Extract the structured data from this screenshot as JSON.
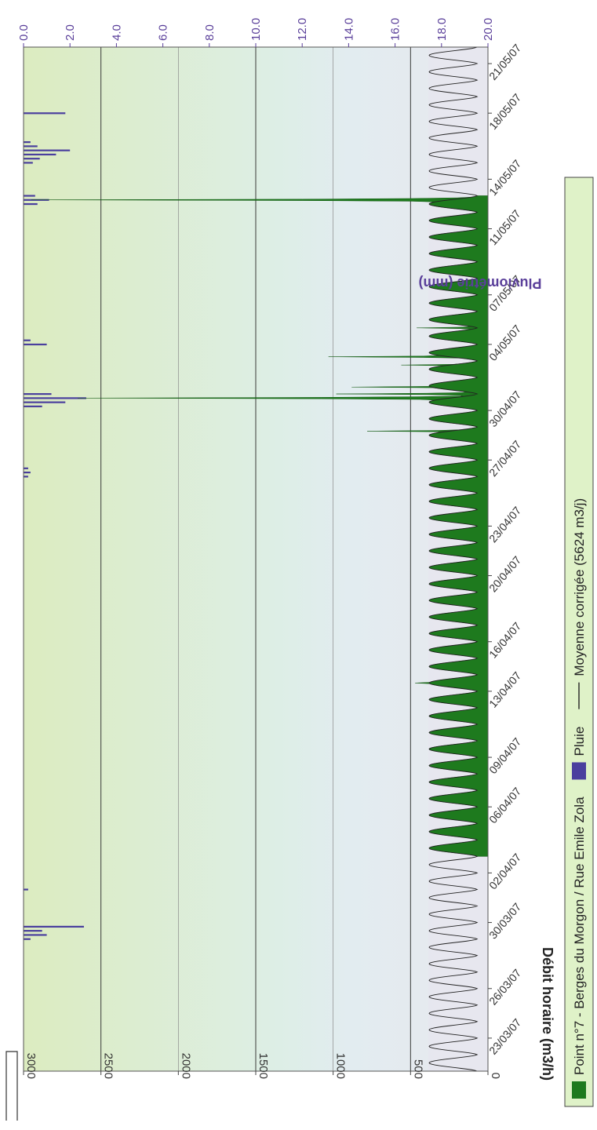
{
  "chart_data": {
    "type": "area",
    "ylabel": "Débit horaire (m3/h)",
    "y2label": "Pluviométrie (mm)",
    "ylim": [
      0,
      3000
    ],
    "y2lim": [
      0,
      20
    ],
    "y_ticks": [
      "0",
      "500",
      "1000",
      "1500",
      "2000",
      "2500",
      "3000"
    ],
    "y2_ticks": [
      "0.0",
      "2.0",
      "4.0",
      "6.0",
      "8.0",
      "10.0",
      "12.0",
      "14.0",
      "16.0",
      "18.0",
      "20.0"
    ],
    "x_start": "2007-03-21",
    "x_end": "2007-05-22",
    "x_tick_labels": [
      "23/03/07",
      "26/03/07",
      "30/03/07",
      "02/04/07",
      "06/04/07",
      "09/04/07",
      "13/04/07",
      "16/04/07",
      "20/04/07",
      "23/04/07",
      "27/04/07",
      "30/04/07",
      "04/05/07",
      "07/05/07",
      "11/05/07",
      "14/05/07",
      "18/05/07",
      "21/05/07"
    ],
    "flow_measured_period": [
      "2007-04-03",
      "2007-05-13"
    ],
    "flow_daily_pattern": {
      "min": 70,
      "max": 380
    },
    "flow_peaks": [
      {
        "date": "2007-04-13 12:00",
        "value": 470
      },
      {
        "date": "2007-04-28 18:00",
        "value": 780
      },
      {
        "date": "2007-04-30 18:00",
        "value": 2650
      },
      {
        "date": "2007-05-01 00:00",
        "value": 980
      },
      {
        "date": "2007-05-01 10:00",
        "value": 880
      },
      {
        "date": "2007-05-03 06:00",
        "value": 1030
      },
      {
        "date": "2007-05-02 18:00",
        "value": 560
      },
      {
        "date": "2007-05-05 00:00",
        "value": 460
      },
      {
        "date": "2007-05-12 18:00",
        "value": 2950
      }
    ],
    "rain": [
      {
        "date": "2007-03-29 00:00",
        "mm": 0.3
      },
      {
        "date": "2007-03-29 06:00",
        "mm": 1.0
      },
      {
        "date": "2007-03-29 12:00",
        "mm": 0.8
      },
      {
        "date": "2007-03-29 18:00",
        "mm": 2.6
      },
      {
        "date": "2007-04-01 00:00",
        "mm": 0.2
      },
      {
        "date": "2007-04-26 00:00",
        "mm": 0.2
      },
      {
        "date": "2007-04-26 06:00",
        "mm": 0.3
      },
      {
        "date": "2007-04-26 12:00",
        "mm": 0.2
      },
      {
        "date": "2007-04-30 06:00",
        "mm": 0.8
      },
      {
        "date": "2007-04-30 12:00",
        "mm": 1.8
      },
      {
        "date": "2007-04-30 18:00",
        "mm": 2.7
      },
      {
        "date": "2007-05-01 00:00",
        "mm": 1.2
      },
      {
        "date": "2007-05-04 00:00",
        "mm": 1.0
      },
      {
        "date": "2007-05-04 06:00",
        "mm": 0.3
      },
      {
        "date": "2007-05-12 12:00",
        "mm": 0.6
      },
      {
        "date": "2007-05-12 18:00",
        "mm": 1.1
      },
      {
        "date": "2007-05-13 00:00",
        "mm": 0.5
      },
      {
        "date": "2007-05-15 00:00",
        "mm": 0.4
      },
      {
        "date": "2007-05-15 06:00",
        "mm": 0.7
      },
      {
        "date": "2007-05-15 12:00",
        "mm": 1.4
      },
      {
        "date": "2007-05-15 18:00",
        "mm": 2.0
      },
      {
        "date": "2007-05-16 00:00",
        "mm": 0.6
      },
      {
        "date": "2007-05-16 06:00",
        "mm": 0.3
      },
      {
        "date": "2007-05-18 00:00",
        "mm": 1.8
      }
    ],
    "legend": [
      {
        "label": "Point n°7 - Berges du Morgon / Rue Emile Zola",
        "color": "#1e7a1e"
      },
      {
        "label": "Pluie",
        "color": "#4a3f9e"
      },
      {
        "label": "Moyenne corrigée (5624 m3/j)",
        "color": "#222222"
      }
    ],
    "grid": true,
    "legend_position": "bottom",
    "orientation": "rotated 90° clockwise (time axis runs top to bottom)"
  }
}
